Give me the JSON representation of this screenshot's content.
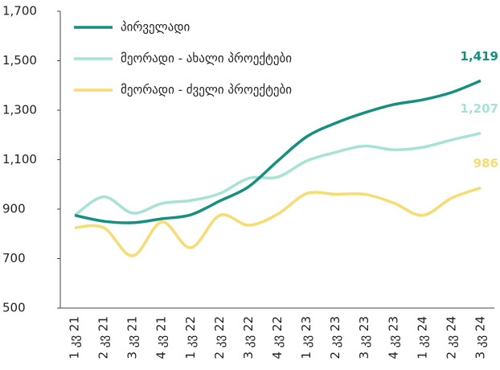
{
  "chart_data": {
    "type": "line",
    "categories": [
      "1 კვ 21",
      "2 კვ 21",
      "3 კვ 21",
      "4 კვ 21",
      "1 კვ 22",
      "2 კვ 22",
      "3 კვ 22",
      "4 კვ 22",
      "1 კვ 23",
      "2 კვ 23",
      "3 კვ 23",
      "4 კვ 23",
      "1 კვ 24",
      "2 კვ 24",
      "3 კვ 24"
    ],
    "series": [
      {
        "name": "პირველადი",
        "color": "#14907f",
        "values": [
          875,
          851,
          845,
          861,
          877,
          933,
          991,
          1095,
          1193,
          1248,
          1290,
          1323,
          1342,
          1372,
          1419
        ],
        "value_labels": [
          null,
          null,
          null,
          null,
          null,
          null,
          null,
          null,
          null,
          null,
          null,
          null,
          null,
          null,
          "1,419"
        ]
      },
      {
        "name": "მეორადი - ახალი პროექტები",
        "color": "#a6e3d5",
        "values": [
          875,
          950,
          884,
          923,
          935,
          963,
          1025,
          1030,
          1095,
          1130,
          1155,
          1140,
          1150,
          1180,
          1207
        ],
        "value_labels": [
          null,
          null,
          null,
          null,
          null,
          null,
          null,
          null,
          null,
          null,
          null,
          null,
          null,
          null,
          "1,207"
        ]
      },
      {
        "name": "მეორადი - ძველი პროექტები",
        "color": "#f8dc70",
        "values": [
          825,
          825,
          711,
          848,
          744,
          875,
          835,
          880,
          963,
          960,
          960,
          925,
          875,
          945,
          986
        ],
        "value_labels": [
          null,
          null,
          null,
          null,
          null,
          null,
          null,
          null,
          null,
          null,
          null,
          null,
          null,
          null,
          "986"
        ]
      }
    ],
    "ylim": [
      500,
      1700
    ],
    "yticks": [
      500,
      700,
      900,
      {
        "value": 1100,
        "label": "1,100"
      },
      {
        "value": 1300,
        "label": "1,300"
      },
      {
        "value": 1500,
        "label": "1,500"
      },
      {
        "value": 1700,
        "label": "1,700"
      }
    ],
    "legend": "upper left"
  }
}
